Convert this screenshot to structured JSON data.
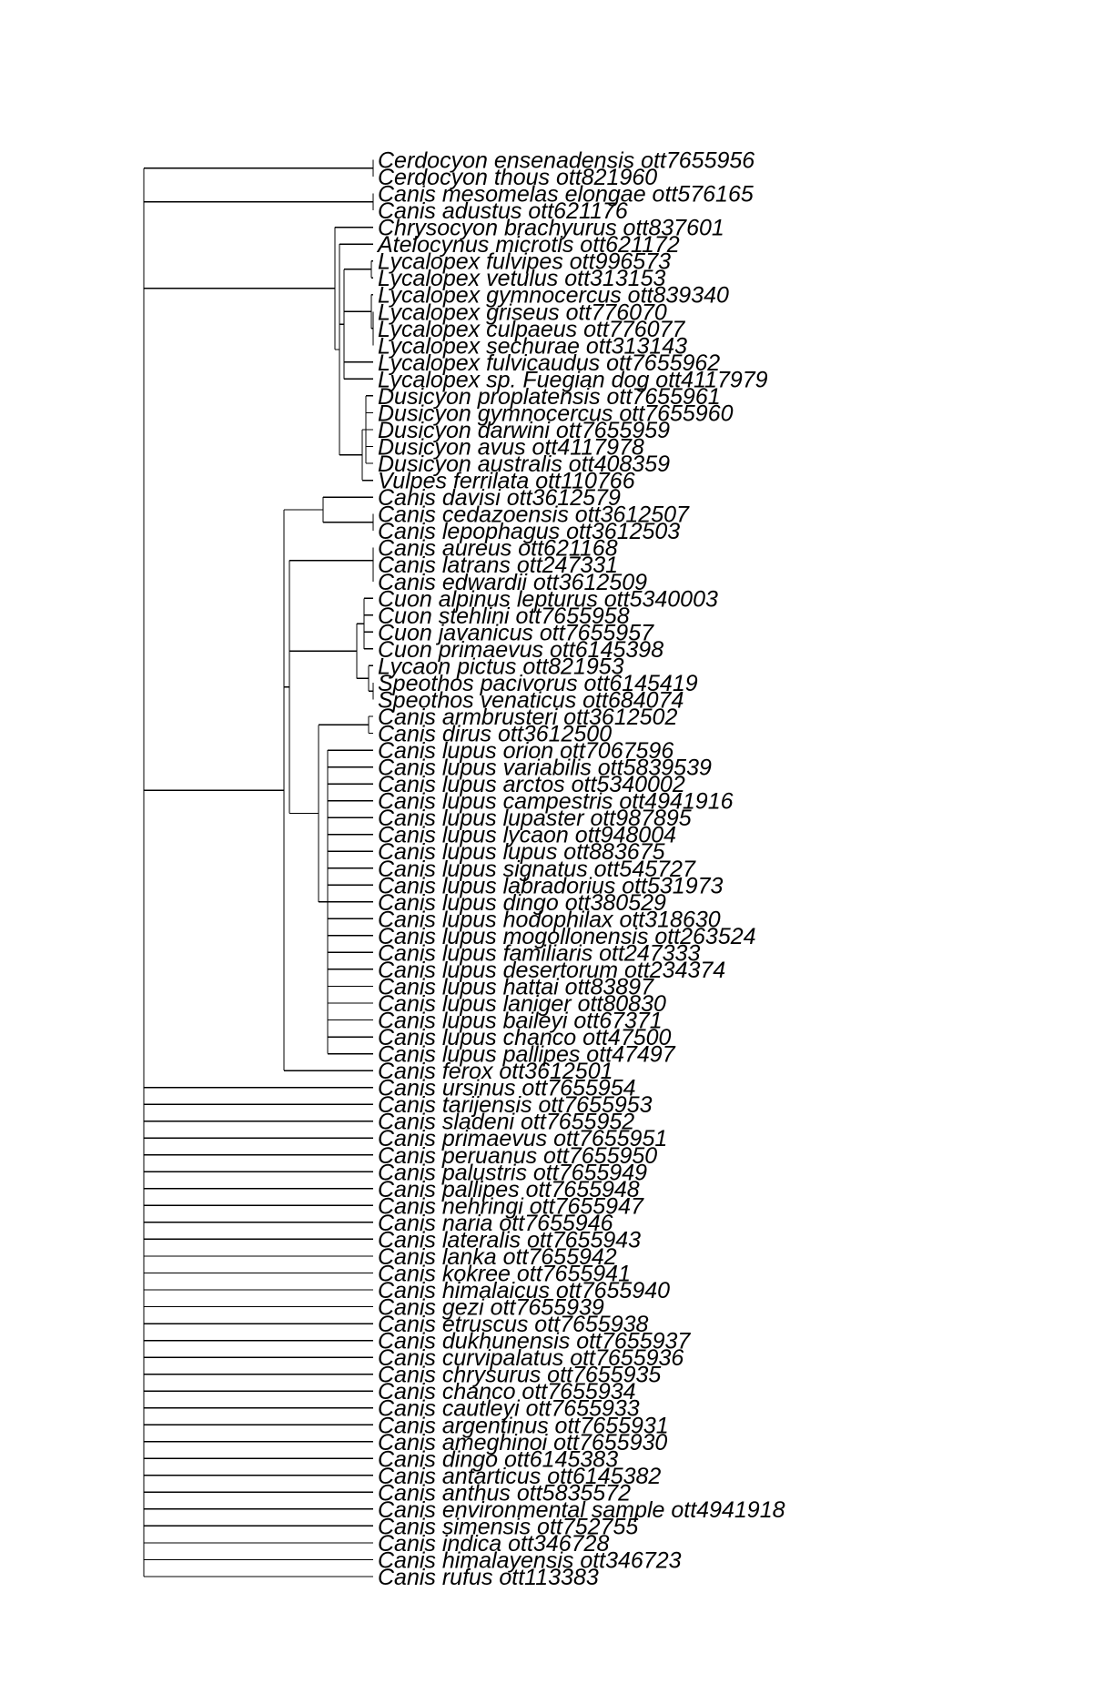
{
  "tips": [
    "Cerdocyon ensenadensis ott7655956",
    "Cerdocyon thous ott821960",
    "Canis mesomelas elongae ott576165",
    "Canis adustus ott621176",
    "Chrysocyon brachyurus ott837601",
    "Atelocynus microtis ott621172",
    "Lycalopex fulvipes ott996573",
    "Lycalopex vetulus ott313153",
    "Lycalopex gymnocercus ott839340",
    "Lycalopex griseus ott776070",
    "Lycalopex culpaeus ott776077",
    "Lycalopex sechurae ott313143",
    "Lycalopex fulvicaudus ott7655962",
    "Lycalopex sp. Fuegian dog ott4117979",
    "Dusicyon proplatensis ott7655961",
    "Dusicyon gymnocercus ott7655960",
    "Dusicyon darwini ott7655959",
    "Dusicyon avus ott4117978",
    "Dusicyon australis ott408359",
    "Vulpes ferrilata ott110766",
    "Canis davisi ott3612579",
    "Canis cedazoensis ott3612507",
    "Canis lepophagus ott3612503",
    "Canis aureus ott621168",
    "Canis latrans ott247331",
    "Canis edwardii ott3612509",
    "Cuon alpinus lepturus ott5340003",
    "Cuon stehlini ott7655958",
    "Cuon javanicus ott7655957",
    "Cuon primaevus ott6145398",
    "Lycaon pictus ott821953",
    "Speothos pacivorus ott6145419",
    "Speothos venaticus ott684074",
    "Canis armbrusteri ott3612502",
    "Canis dirus ott3612500",
    "Canis lupus orion ott7067596",
    "Canis lupus variabilis ott5839539",
    "Canis lupus arctos ott5340002",
    "Canis lupus campestris ott4941916",
    "Canis lupus lupaster ott987895",
    "Canis lupus lycaon ott948004",
    "Canis lupus lupus ott883675",
    "Canis lupus signatus ott545727",
    "Canis lupus labradorius ott531973",
    "Canis lupus dingo ott380529",
    "Canis lupus hodophilax ott318630",
    "Canis lupus mogollonensis ott263524",
    "Canis lupus familiaris ott247333",
    "Canis lupus desertorum ott234374",
    "Canis lupus hattai ott83897",
    "Canis lupus laniger ott80830",
    "Canis lupus baileyi ott67371",
    "Canis lupus chanco ott47500",
    "Canis lupus pallipes ott47497",
    "Canis ferox ott3612501",
    "Canis ursinus ott7655954",
    "Canis tarijensis ott7655953",
    "Canis sladeni ott7655952",
    "Canis primaevus ott7655951",
    "Canis peruanus ott7655950",
    "Canis palustris ott7655949",
    "Canis pallipes ott7655948",
    "Canis nehringi ott7655947",
    "Canis naria ott7655946",
    "Canis lateralis ott7655943",
    "Canis lanka ott7655942",
    "Canis kokree ott7655941",
    "Canis himalaicus ott7655940",
    "Canis gezi ott7655939",
    "Canis etruscus ott7655938",
    "Canis dukhunensis ott7655937",
    "Canis curvipalatus ott7655936",
    "Canis chrysurus ott7655935",
    "Canis chanco ott7655934",
    "Canis cautleyi ott7655933",
    "Canis argentinus ott7655931",
    "Canis ameghinoi ott7655930",
    "Canis dingo ott6145383",
    "Canis antarticus ott6145382",
    "Canis anthus ott5835572",
    "Canis environmental sample ott4941918",
    "Canis simensis ott752755",
    "Canis indica ott346728",
    "Canis himalayensis ott346723",
    "Canis rufus ott113383"
  ]
}
